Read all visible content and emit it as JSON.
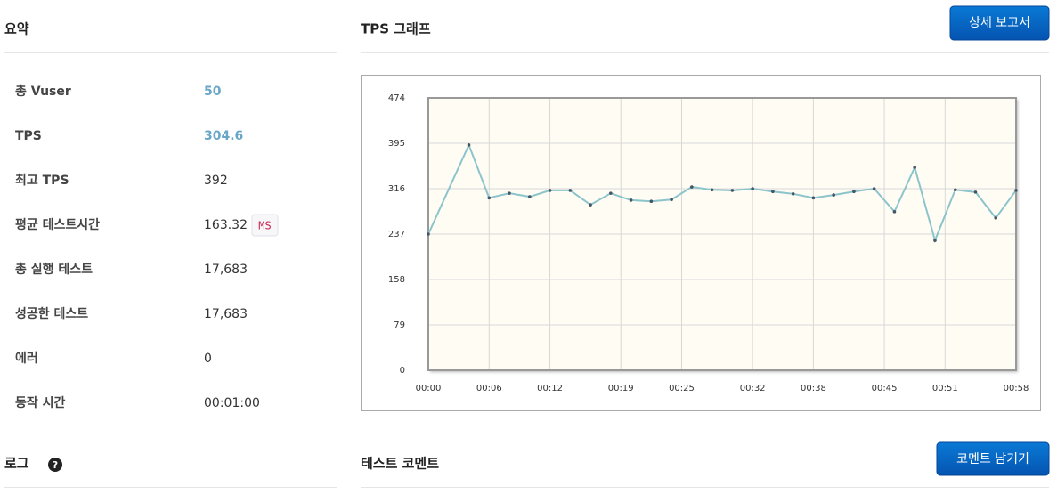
{
  "summary": {
    "title": "요약",
    "rows": [
      {
        "label": "총 Vuser",
        "value": "50"
      },
      {
        "label": "TPS",
        "value": "304.6"
      },
      {
        "label": "최고 TPS",
        "value": "392"
      },
      {
        "label": "평균 테스트시간",
        "value": "163.32",
        "unit": "MS"
      },
      {
        "label": "총 실행 테스트",
        "value": "17,683"
      },
      {
        "label": "성공한 테스트",
        "value": "17,683"
      },
      {
        "label": "에러",
        "value": "0"
      },
      {
        "label": "동작 시간",
        "value": "00:01:00"
      }
    ]
  },
  "graph": {
    "title": "TPS 그래프",
    "button": "상세 보고서"
  },
  "log": {
    "title": "로그"
  },
  "comment": {
    "title": "테스트 코멘트",
    "button": "코멘트 남기기"
  },
  "chart_data": {
    "type": "line",
    "x": [
      0,
      4,
      6,
      8,
      10,
      12,
      14,
      16,
      18,
      20,
      22,
      24,
      26,
      28,
      30,
      32,
      34,
      36,
      38,
      40,
      42,
      44,
      46,
      48,
      50,
      52,
      54,
      56,
      58
    ],
    "series": [
      {
        "name": "TPS",
        "color": "#8cc4cc",
        "values": [
          237,
          392,
          300,
          308,
          302,
          313,
          313,
          288,
          308,
          296,
          294,
          297,
          319,
          314,
          313,
          316,
          311,
          307,
          300,
          305,
          311,
          316,
          276,
          353,
          226,
          314,
          310,
          265,
          313
        ]
      }
    ],
    "xlim": [
      0,
      58
    ],
    "xticks": [
      {
        "value": 0,
        "label": "00:00"
      },
      {
        "value": 6,
        "label": "00:06"
      },
      {
        "value": 12,
        "label": "00:12"
      },
      {
        "value": 19,
        "label": "00:19"
      },
      {
        "value": 25,
        "label": "00:25"
      },
      {
        "value": 32,
        "label": "00:32"
      },
      {
        "value": 38,
        "label": "00:38"
      },
      {
        "value": 45,
        "label": "00:45"
      },
      {
        "value": 51,
        "label": "00:51"
      },
      {
        "value": 58,
        "label": "00:58"
      }
    ],
    "ylim": [
      0,
      474
    ],
    "yticks": [
      0,
      79,
      158,
      237,
      316,
      395,
      474
    ],
    "grid": true
  }
}
